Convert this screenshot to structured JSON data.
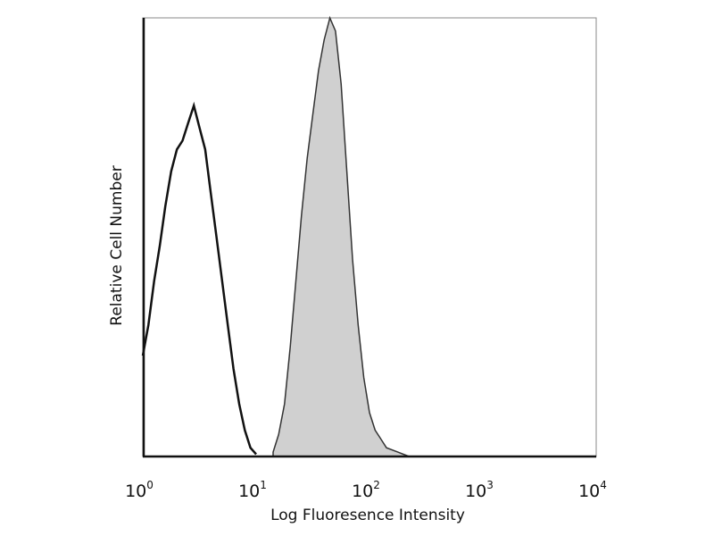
{
  "chart_data": {
    "type": "area",
    "title": "",
    "xlabel": "Log Fluoresence Intensity",
    "ylabel": "Relative Cell Number",
    "x_scale": "log",
    "xlim": [
      1,
      10000
    ],
    "ylim": [
      0,
      100
    ],
    "x_ticks": [
      {
        "base": "10",
        "exp": "0"
      },
      {
        "base": "10",
        "exp": "1"
      },
      {
        "base": "10",
        "exp": "2"
      },
      {
        "base": "10",
        "exp": "3"
      },
      {
        "base": "10",
        "exp": "4"
      }
    ],
    "grid": false,
    "series": [
      {
        "style": "open-outline",
        "color": "#111111",
        "x": [
          1,
          1.12,
          1.26,
          1.41,
          1.58,
          1.78,
          2.0,
          2.24,
          2.51,
          2.82,
          3.16,
          3.55,
          3.98,
          4.47,
          5.01,
          5.62,
          6.31,
          7.08,
          7.94,
          8.91,
          10
        ],
        "y": [
          23,
          30,
          40,
          48,
          57,
          65,
          70,
          72,
          76,
          80,
          75,
          70,
          60,
          50,
          40,
          30,
          20,
          12,
          6,
          2,
          0.5
        ]
      },
      {
        "style": "filled",
        "color": "#333333",
        "fill": "#d0d0d0",
        "x": [
          14.1,
          15.8,
          17.8,
          20,
          22.4,
          25.1,
          28.2,
          31.6,
          35.5,
          39.8,
          44.7,
          50.1,
          56.2,
          63.1,
          70.8,
          79.4,
          89.1,
          100,
          112,
          126,
          141,
          178,
          224
        ],
        "y": [
          1,
          5,
          12,
          25,
          40,
          55,
          68,
          78,
          88,
          95,
          100,
          97,
          85,
          65,
          45,
          30,
          18,
          10,
          6,
          4,
          2,
          1,
          0
        ]
      }
    ]
  }
}
